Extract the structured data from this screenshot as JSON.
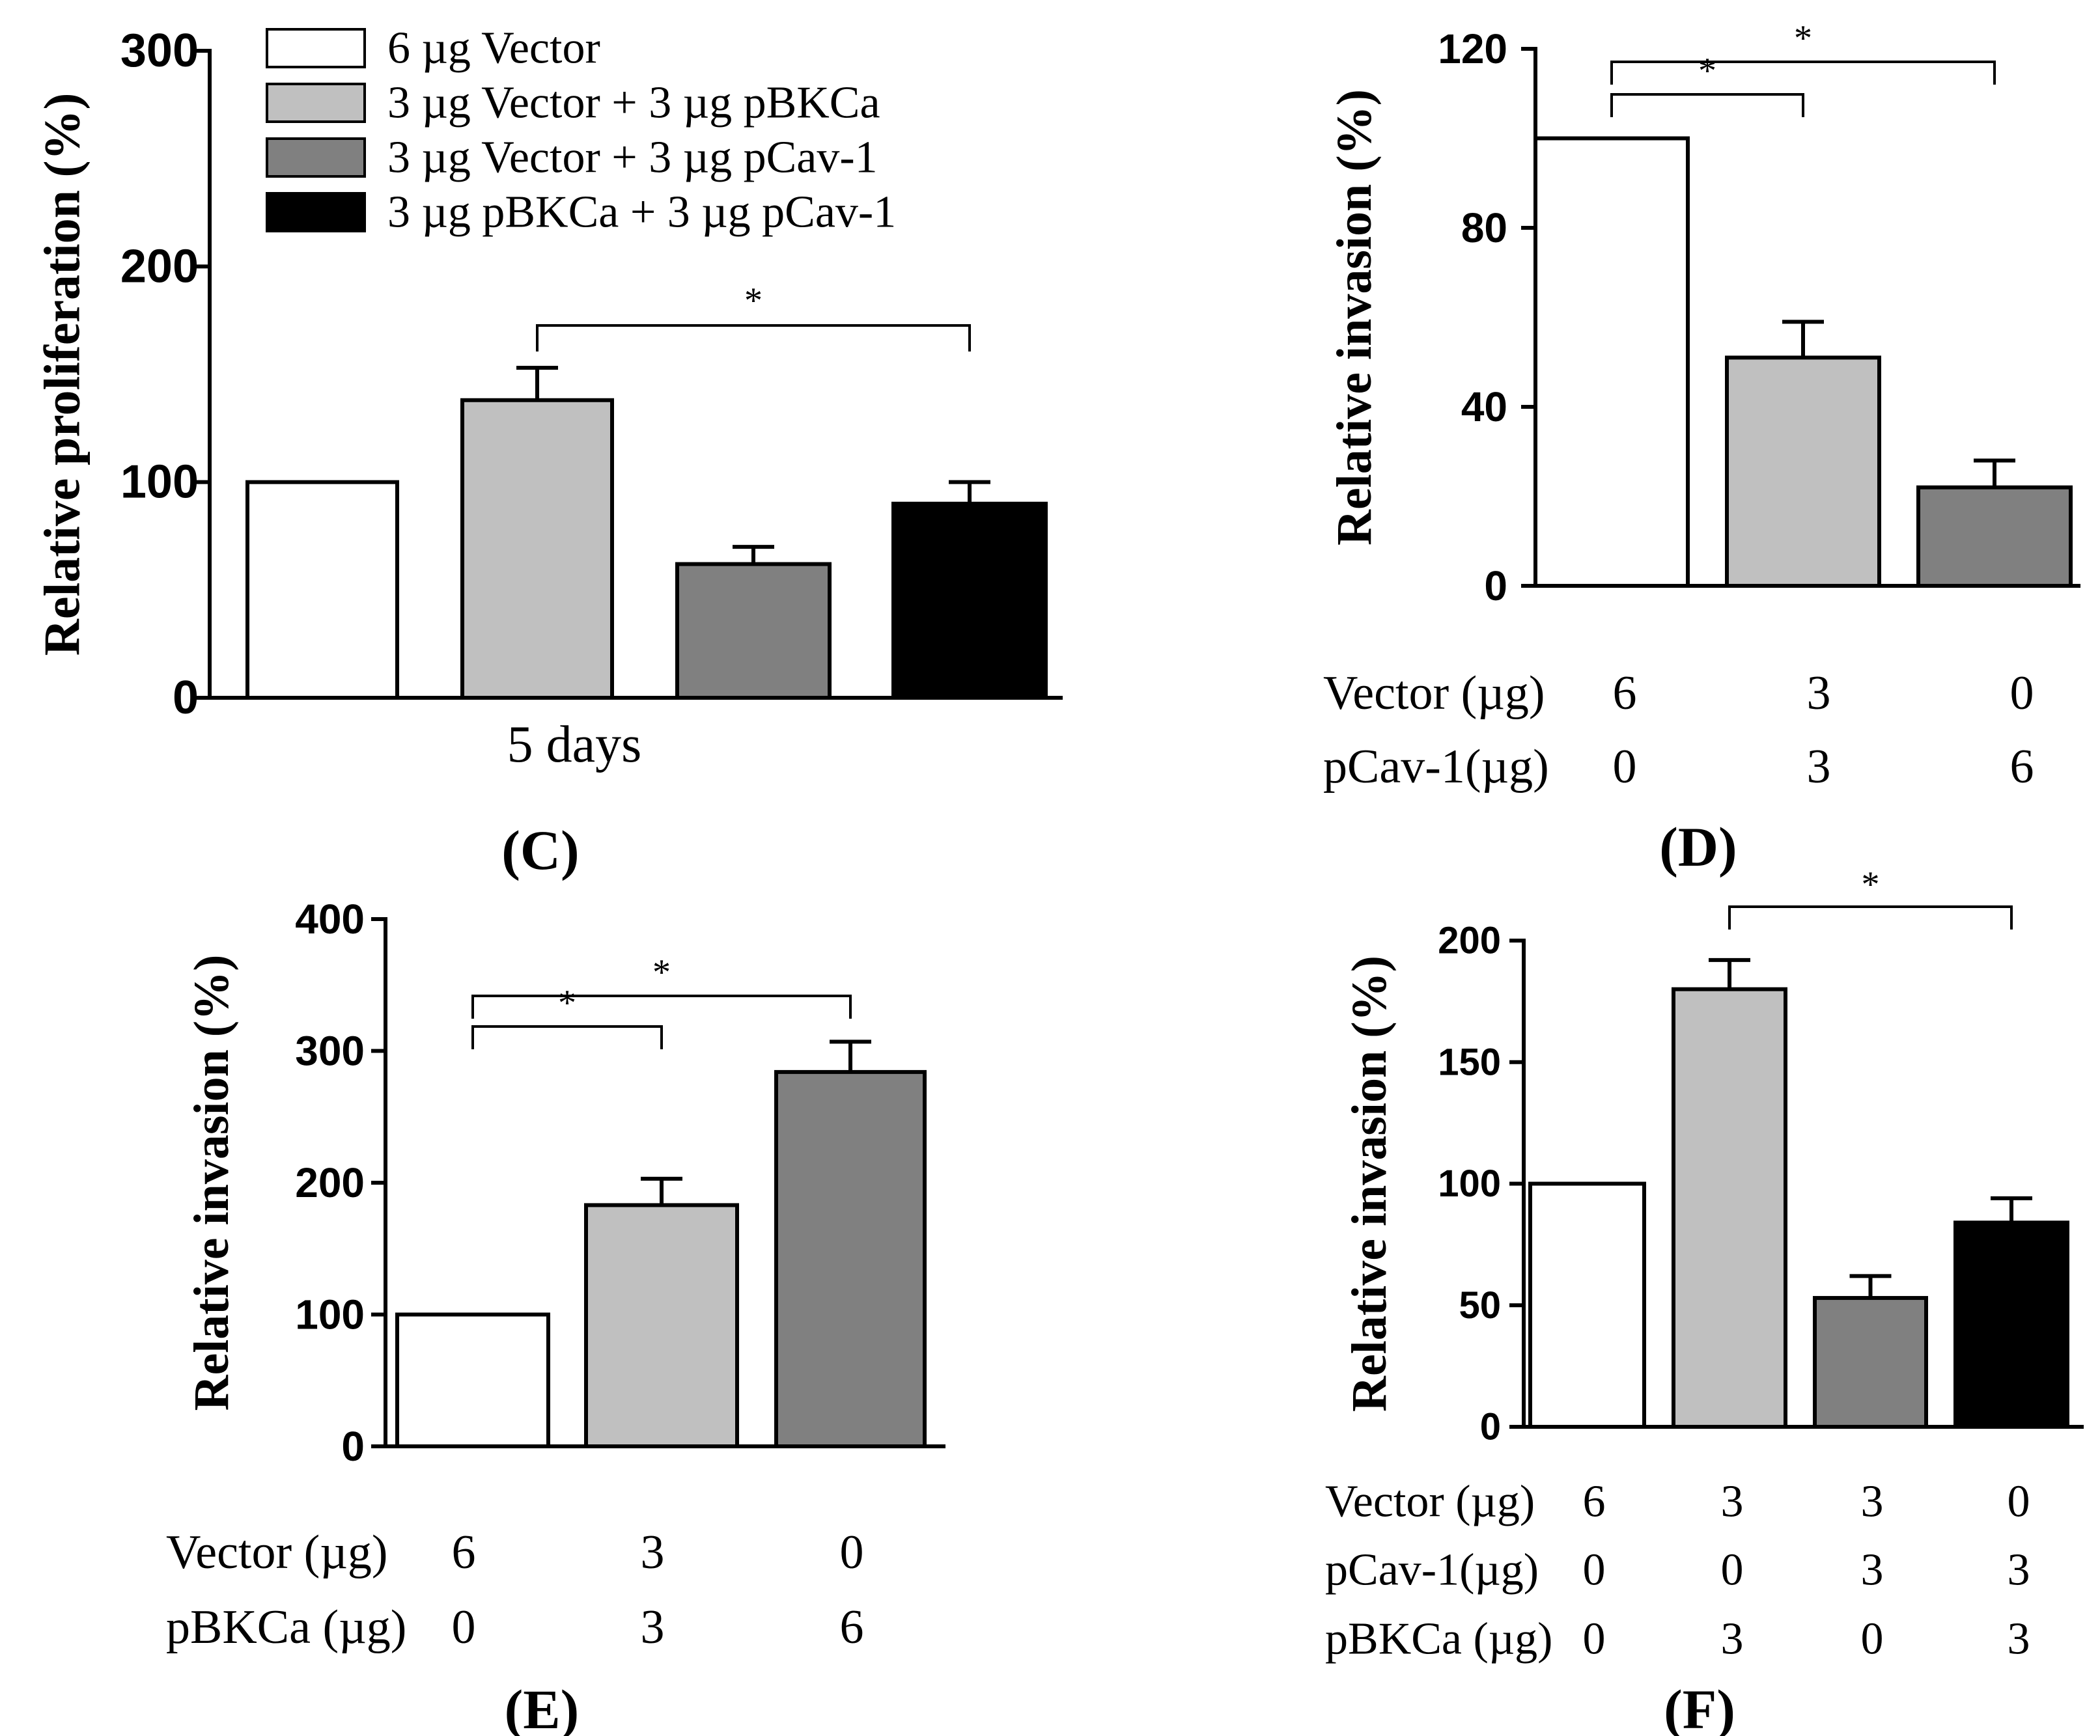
{
  "chart_data": [
    {
      "id": "C",
      "type": "bar",
      "panel_label": "(C)",
      "ylabel": "Relative proliferation (%)",
      "xlabel": "5 days",
      "ylim": [
        0,
        300
      ],
      "yticks": [
        0,
        100,
        200,
        300
      ],
      "categories": [
        "6 µg Vector",
        "3 µg Vector + 3 µg pBKCa",
        "3 µg Vector + 3 µg pCav-1",
        "3 µg pBKCa + 3 µg pCav-1"
      ],
      "values": [
        100,
        138,
        62,
        90
      ],
      "errors": [
        0,
        15,
        8,
        10
      ],
      "colors": [
        "#ffffff",
        "#c0c0c0",
        "#808080",
        "#000000"
      ],
      "legend": [
        "6 µg Vector",
        "3 µg Vector + 3 µg pBKCa",
        "3 µg Vector + 3 µg pCav-1",
        "3 µg pBKCa + 3 µg pCav-1"
      ],
      "significance": [
        {
          "from": 1,
          "to": 3,
          "label": "*"
        }
      ]
    },
    {
      "id": "D",
      "type": "bar",
      "panel_label": "(D)",
      "ylabel": "Relative invasion (%)",
      "ylim": [
        0,
        120
      ],
      "yticks": [
        0,
        40,
        80,
        120
      ],
      "values": [
        100,
        51,
        22
      ],
      "errors": [
        0,
        8,
        6
      ],
      "colors": [
        "#ffffff",
        "#c0c0c0",
        "#808080"
      ],
      "condition_rows": [
        {
          "label": "Vector (µg)",
          "values": [
            "6",
            "3",
            "0"
          ]
        },
        {
          "label": "pCav-1(µg)",
          "values": [
            "0",
            "3",
            "6"
          ]
        }
      ],
      "significance": [
        {
          "from": 0,
          "to": 1,
          "label": "*"
        },
        {
          "from": 0,
          "to": 2,
          "label": "*"
        }
      ]
    },
    {
      "id": "E",
      "type": "bar",
      "panel_label": "(E)",
      "ylabel": "Relative invasion (%)",
      "ylim": [
        0,
        400
      ],
      "yticks": [
        0,
        100,
        200,
        300,
        400
      ],
      "values": [
        100,
        183,
        284
      ],
      "errors": [
        0,
        20,
        23
      ],
      "colors": [
        "#ffffff",
        "#c0c0c0",
        "#808080"
      ],
      "condition_rows": [
        {
          "label": "Vector (µg)",
          "values": [
            "6",
            "3",
            "0"
          ]
        },
        {
          "label": "pBKCa (µg)",
          "values": [
            "0",
            "3",
            "6"
          ]
        }
      ],
      "significance": [
        {
          "from": 0,
          "to": 1,
          "label": "*"
        },
        {
          "from": 0,
          "to": 2,
          "label": "*"
        }
      ]
    },
    {
      "id": "F",
      "type": "bar",
      "panel_label": "(F)",
      "ylabel": "Relative invasion (%)",
      "ylim": [
        0,
        200
      ],
      "yticks": [
        0,
        50,
        100,
        150,
        200
      ],
      "values": [
        100,
        180,
        53,
        84
      ],
      "errors": [
        0,
        12,
        9,
        10
      ],
      "colors": [
        "#ffffff",
        "#c0c0c0",
        "#808080",
        "#000000"
      ],
      "condition_rows": [
        {
          "label": "Vector (µg)",
          "values": [
            "6",
            "3",
            "3",
            "0"
          ]
        },
        {
          "label": "pCav-1(µg)",
          "values": [
            "0",
            "0",
            "3",
            "3"
          ]
        },
        {
          "label": "pBKCa (µg)",
          "values": [
            "0",
            "3",
            "0",
            "3"
          ]
        }
      ],
      "significance": [
        {
          "from": 1,
          "to": 3,
          "label": "*"
        }
      ]
    }
  ]
}
